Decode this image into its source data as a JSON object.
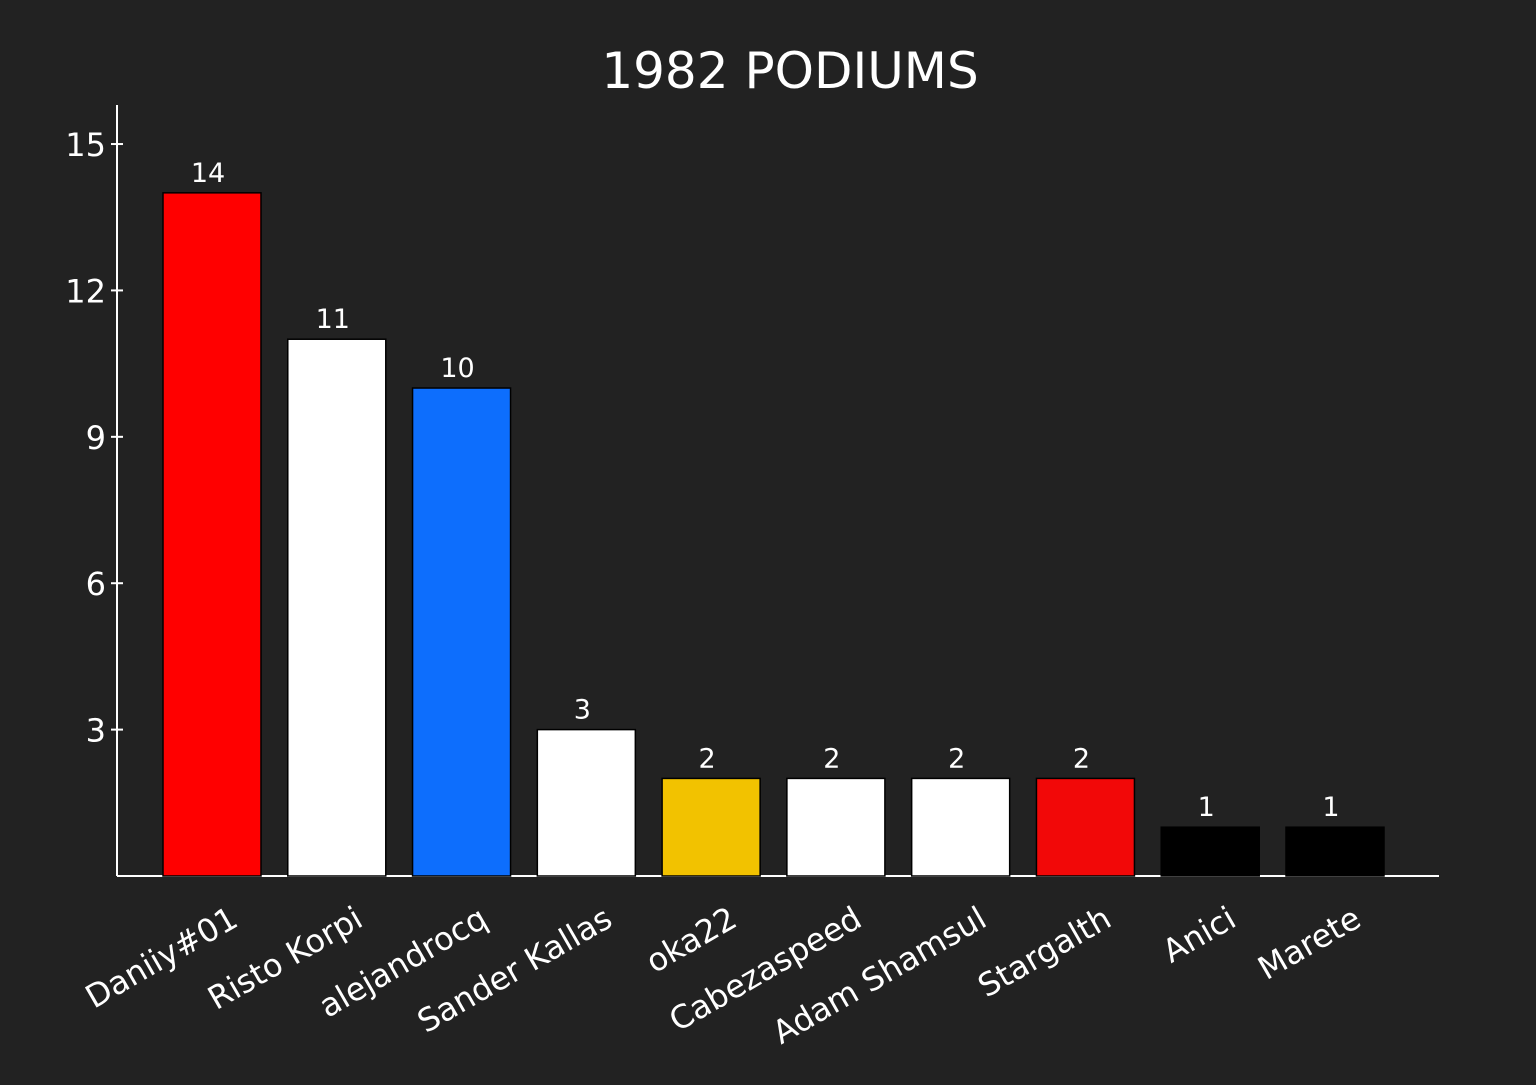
{
  "colors": {
    "background": "#222222",
    "axis": "#ffffff",
    "text": "#ffffff"
  },
  "chart_data": {
    "type": "bar",
    "title": "1982 PODIUMS",
    "xlabel": "",
    "ylabel": "",
    "ylim": [
      0,
      15.8
    ],
    "yticks": [
      3,
      6,
      9,
      12,
      15
    ],
    "grid": false,
    "legend": "none",
    "categories": [
      "Daniiy#01",
      "Risto Korpi",
      "alejandrocq",
      "Sander Kallas",
      "oka22",
      "Cabezaspeed",
      "Adam Shamsul",
      "Stargalth",
      "Anici",
      "Marete"
    ],
    "values": [
      14,
      11,
      10,
      3,
      2,
      2,
      2,
      2,
      1,
      1
    ],
    "data_labels": [
      "14",
      "11",
      "10",
      "3",
      "2",
      "2",
      "2",
      "2",
      "1",
      "1"
    ],
    "bar_colors": [
      "#ff0000",
      "#ffffff",
      "#0d6efd",
      "#ffffff",
      "#f2c200",
      "#ffffff",
      "#ffffff",
      "#f20808",
      "#000000",
      "#000000"
    ]
  }
}
